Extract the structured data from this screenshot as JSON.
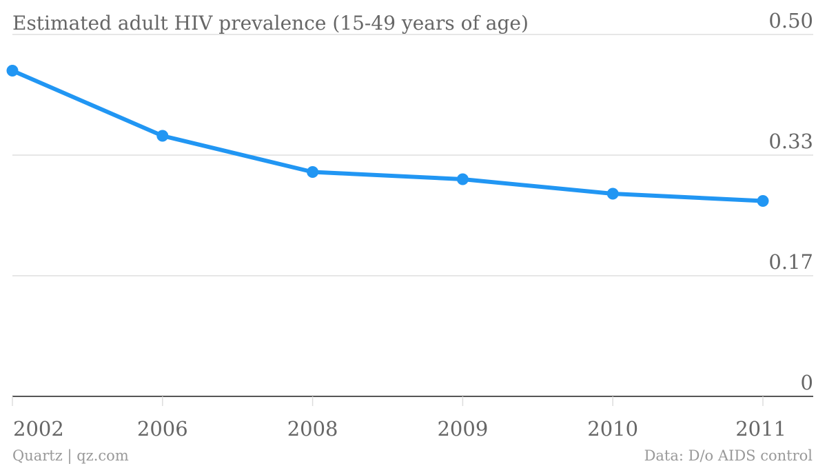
{
  "footer": {
    "source_left": "Quartz | qz.com",
    "source_right": "Data: D/o AIDS control"
  },
  "chart_data": {
    "type": "line",
    "title": "Estimated adult HIV prevalence (15-49 years of age)",
    "xlabel": "",
    "ylabel": "",
    "categories": [
      "2002",
      "2006",
      "2008",
      "2009",
      "2010",
      "2011"
    ],
    "series": [
      {
        "values": [
          0.45,
          0.36,
          0.31,
          0.3,
          0.28,
          0.27
        ],
        "color": "#2196f3"
      }
    ],
    "yticks": [
      {
        "value": 0,
        "label": "0"
      },
      {
        "value": 0.1667,
        "label": "0.17"
      },
      {
        "value": 0.3333,
        "label": "0.33"
      },
      {
        "value": 0.5,
        "label": "0.50"
      }
    ],
    "ylim": [
      0,
      0.5
    ],
    "grid": true,
    "colors": {
      "line": "#2196f3",
      "grid": "#dddddd",
      "axis": "#555555",
      "text": "#666666",
      "footer": "#999999"
    }
  }
}
